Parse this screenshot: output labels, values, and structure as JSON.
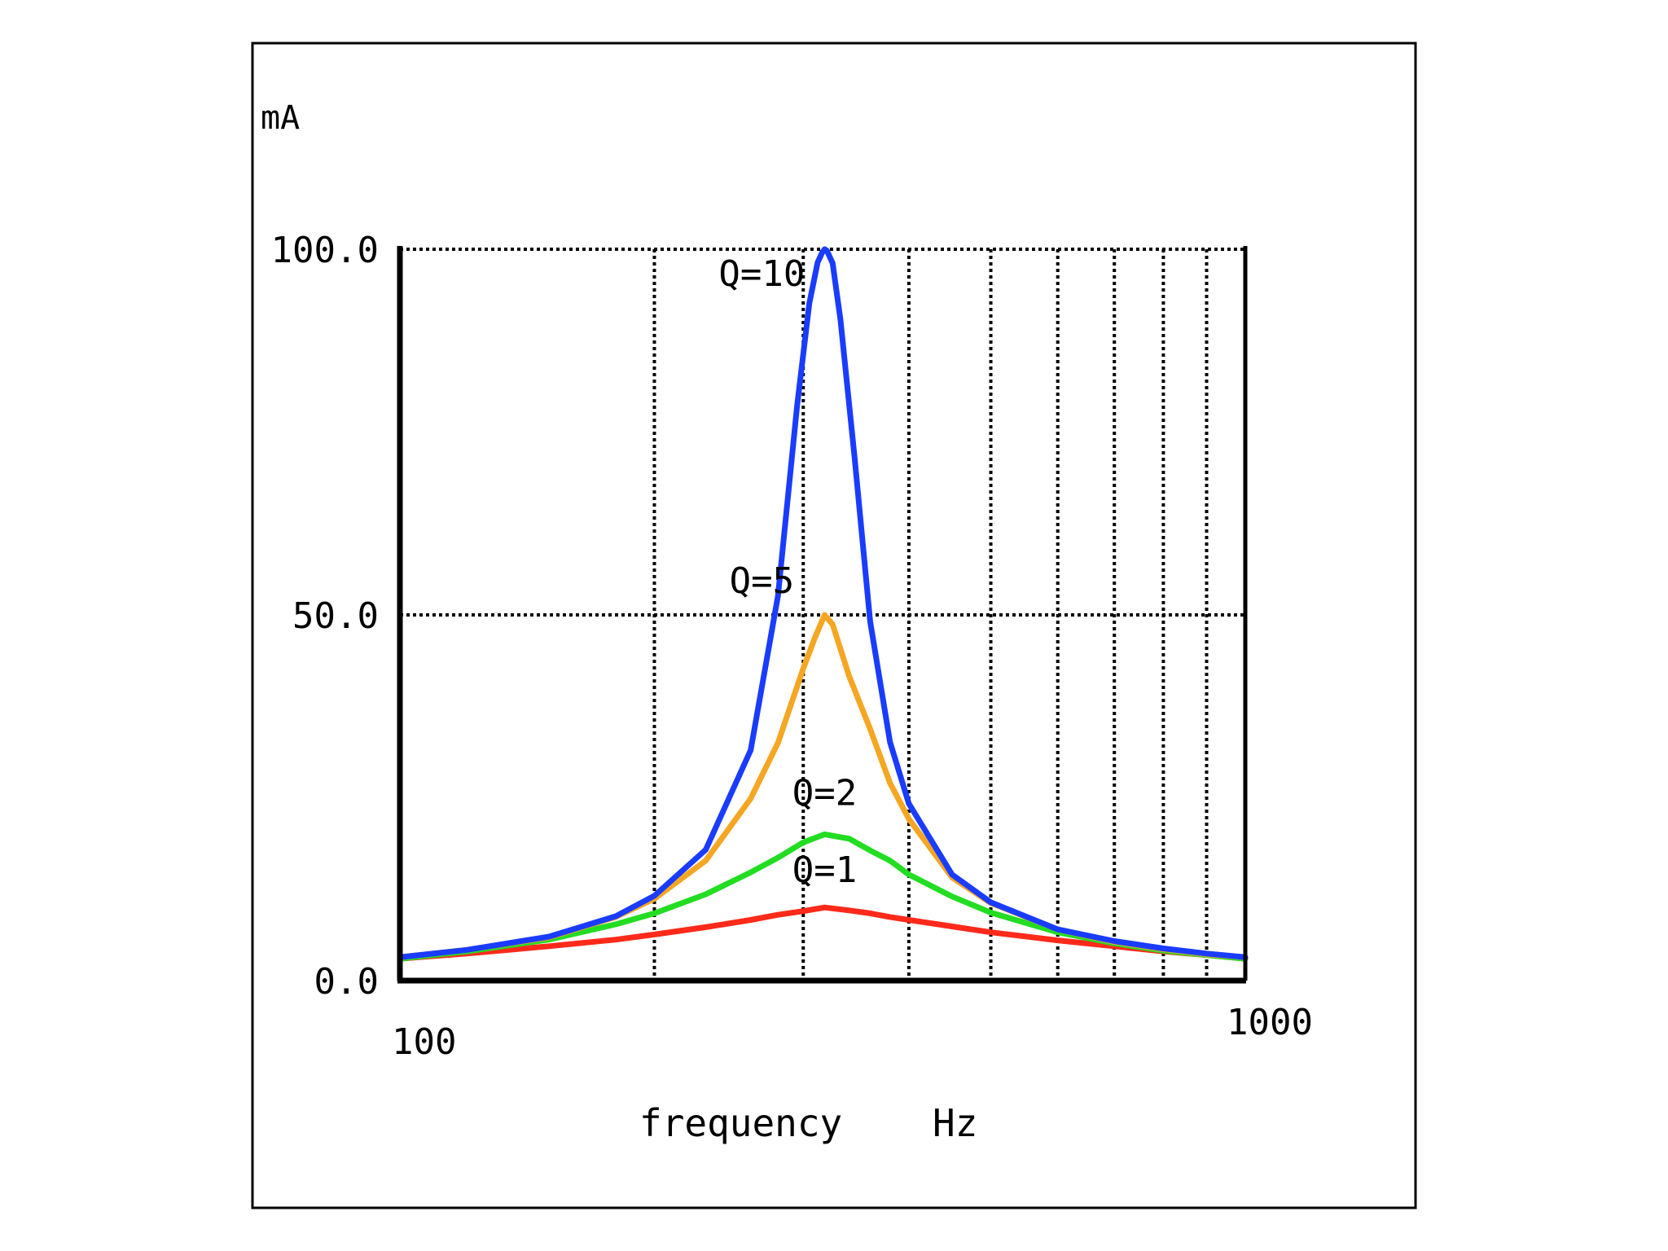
{
  "chart_data": {
    "type": "line",
    "title": "",
    "ylabel": "mA",
    "xlabel": "frequency",
    "xunit": "Hz",
    "xscale": "log",
    "xlim": [
      100,
      1000
    ],
    "ylim": [
      0,
      100
    ],
    "x_tick_labels": [
      {
        "value": 100,
        "label": "100"
      },
      {
        "value": 1000,
        "label": "1000"
      }
    ],
    "y_tick_labels": [
      {
        "value": 0,
        "label": "0.0"
      },
      {
        "value": 50,
        "label": "50.0"
      },
      {
        "value": 100,
        "label": "100.0"
      }
    ],
    "x_gridlines": [
      200,
      300,
      400,
      500,
      600,
      700,
      800,
      900
    ],
    "y_gridlines": [
      50,
      100
    ],
    "grid": true,
    "resonance_hz": 318,
    "series": [
      {
        "name": "Q=10",
        "color": "#1a3cff",
        "x": [
          100,
          120,
          150,
          180,
          200,
          230,
          260,
          280,
          295,
          305,
          312,
          316,
          318,
          320,
          325,
          332,
          345,
          360,
          380,
          400,
          450,
          500,
          600,
          700,
          800,
          900,
          1000
        ],
        "y": [
          3.2,
          4.2,
          6.0,
          8.8,
          11.6,
          17.9,
          31.5,
          52.6,
          78.6,
          92.6,
          98.2,
          99.6,
          100.0,
          99.8,
          98.1,
          90.4,
          71.5,
          49.1,
          32.6,
          24.2,
          14.5,
          10.7,
          7.0,
          5.4,
          4.4,
          3.7,
          3.2
        ]
      },
      {
        "name": "Q=5",
        "color": "#f5a623",
        "x": [
          100,
          120,
          150,
          180,
          200,
          230,
          260,
          280,
          300,
          310,
          318,
          325,
          340,
          360,
          380,
          400,
          450,
          500,
          600,
          700,
          800,
          900,
          1000
        ],
        "y": [
          3.2,
          4.2,
          5.9,
          8.7,
          11.2,
          16.4,
          24.9,
          32.5,
          42.7,
          47.0,
          50.0,
          48.7,
          41.6,
          34.4,
          27.0,
          22.1,
          14.1,
          10.6,
          7.0,
          5.3,
          4.3,
          3.6,
          3.2
        ]
      },
      {
        "name": "Q=2",
        "color": "#22dd22",
        "x": [
          100,
          120,
          150,
          180,
          200,
          230,
          260,
          280,
          300,
          318,
          340,
          360,
          380,
          400,
          450,
          500,
          600,
          700,
          800,
          900,
          1000
        ],
        "y": [
          3.0,
          4.0,
          5.6,
          7.7,
          9.2,
          11.8,
          14.8,
          16.8,
          18.9,
          20.0,
          19.4,
          17.8,
          16.4,
          14.5,
          11.5,
          9.3,
          6.6,
          5.1,
          4.1,
          3.5,
          3.0
        ]
      },
      {
        "name": "Q=1",
        "color": "#ff2a1a",
        "x": [
          100,
          120,
          150,
          180,
          200,
          230,
          260,
          280,
          300,
          318,
          340,
          360,
          380,
          400,
          450,
          500,
          600,
          700,
          800,
          900,
          1000
        ],
        "y": [
          3.0,
          3.7,
          4.7,
          5.6,
          6.3,
          7.3,
          8.3,
          9.0,
          9.5,
          10.0,
          9.6,
          9.2,
          8.7,
          8.3,
          7.4,
          6.6,
          5.5,
          4.7,
          4.0,
          3.5,
          3.0
        ]
      }
    ],
    "annotations": [
      {
        "text": "Q=10",
        "series": "Q=10",
        "at_x": 268,
        "at_y": 95
      },
      {
        "text": "Q=5",
        "series": "Q=5",
        "at_x": 268,
        "at_y": 53
      },
      {
        "text": "Q=2",
        "series": "Q=2",
        "at_x": 318,
        "at_y": 24
      },
      {
        "text": "Q=1",
        "series": "Q=1",
        "at_x": 318,
        "at_y": 13.5
      }
    ]
  }
}
